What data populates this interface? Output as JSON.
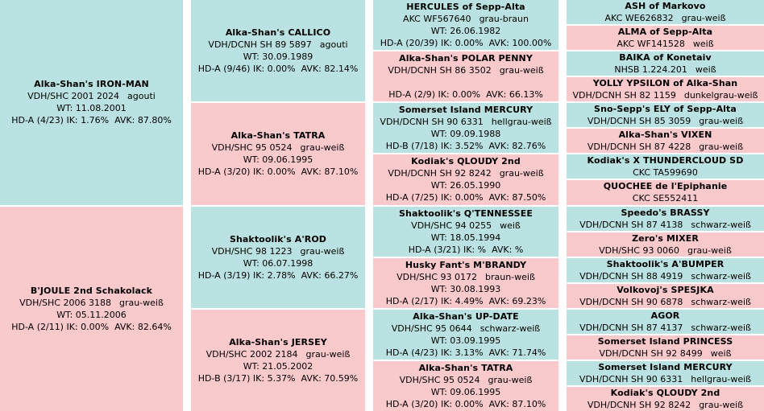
{
  "pedigree": {
    "colors": {
      "sire_bg": "#BAE2E2",
      "dam_bg": "#FAC9CC",
      "gap_bg": "#FFFFFF",
      "text": "#000000"
    },
    "columns": [
      {
        "generation": 1,
        "cells": [
          {
            "role": "sire",
            "name": "Alka-Shan's IRON-MAN",
            "reg": "VDH/SHC 2001 2024",
            "coat": "agouti",
            "wt": "WT: 11.08.2001",
            "hd": "HD-A (4/23) IK: 1.76%  AVK: 87.80%"
          },
          {
            "role": "dam",
            "name": "B'JOULE 2nd Schakolack",
            "reg": "VDH/SHC 2006 3188",
            "coat": "grau-weiß",
            "wt": "WT: 05.11.2006",
            "hd": "HD-A (2/11) IK: 0.00%  AVK: 82.64%"
          }
        ]
      },
      {
        "generation": 2,
        "cells": [
          {
            "role": "sire",
            "name": "Alka-Shan's CALLICO",
            "reg": "VDH/DCNH SH 89 5897",
            "coat": "agouti",
            "wt": "WT: 30.09.1989",
            "hd": "HD-A (9/46) IK: 0.00%  AVK: 82.14%"
          },
          {
            "role": "dam",
            "name": "Alka-Shan's TATRA",
            "reg": "VDH/SHC 95 0524",
            "coat": "grau-weiß",
            "wt": "WT: 09.06.1995",
            "hd": "HD-A (3/20) IK: 0.00%  AVK: 87.10%"
          },
          {
            "role": "sire",
            "name": "Shaktoolik's A'ROD",
            "reg": "VDH/SHC 98 1223",
            "coat": "grau-weiß",
            "wt": "WT: 06.07.1998",
            "hd": "HD-A (3/19) IK: 2.78%  AVK: 66.27%"
          },
          {
            "role": "dam",
            "name": "Alka-Shan's JERSEY",
            "reg": "VDH/SHC 2002 2184",
            "coat": "grau-weiß",
            "wt": "WT: 21.05.2002",
            "hd": "HD-B (3/17) IK: 5.37%  AVK: 70.59%"
          }
        ]
      },
      {
        "generation": 3,
        "cells": [
          {
            "role": "sire",
            "name": "HERCULES of Sepp-Alta",
            "reg": "AKC WF567640",
            "coat": "grau-braun",
            "wt": "WT: 26.06.1982",
            "hd": "HD-A (20/39) IK: 0.00%  AVK: 100.00%"
          },
          {
            "role": "dam",
            "name": "Alka-Shan's POLAR PENNY",
            "reg": "VDH/DCNH SH 86 3502",
            "coat": "grau-weiß",
            "wt": "",
            "hd": "HD-A (2/9) IK: 0.00%  AVK: 66.13%"
          },
          {
            "role": "sire",
            "name": "Somerset Island MERCURY",
            "reg": "VDH/DCNH SH 90 6331",
            "coat": "hellgrau-weiß",
            "wt": "WT: 09.09.1988",
            "hd": "HD-B (7/18) IK: 3.52%  AVK: 82.76%"
          },
          {
            "role": "dam",
            "name": "Kodiak's QLOUDY 2nd",
            "reg": "VDH/DCNH SH 92 8242",
            "coat": "grau-weiß",
            "wt": "WT: 26.05.1990",
            "hd": "HD-A (7/25) IK: 0.00%  AVK: 87.50%"
          },
          {
            "role": "sire",
            "name": "Shaktoolik's Q'TENNESSEE",
            "reg": "VDH/SHC 94 0255",
            "coat": "weiß",
            "wt": "WT: 18.05.1994",
            "hd": "HD-A (3/21) IK: %  AVK: %"
          },
          {
            "role": "dam",
            "name": "Husky Fant's M'BRANDY",
            "reg": "VDH/SHC 93 0172",
            "coat": "braun-weiß",
            "wt": "WT: 30.08.1993",
            "hd": "HD-A (2/17) IK: 4.49%  AVK: 69.23%"
          },
          {
            "role": "sire",
            "name": "Alka-Shan's UP-DATE",
            "reg": "VDH/SHC 95 0644",
            "coat": "schwarz-weiß",
            "wt": "WT: 03.09.1995",
            "hd": "HD-A (4/23) IK: 3.13%  AVK: 71.74%"
          },
          {
            "role": "dam",
            "name": "Alka-Shan's TATRA",
            "reg": "VDH/SHC 95 0524",
            "coat": "grau-weiß",
            "wt": "WT: 09.06.1995",
            "hd": "HD-A (3/20) IK: 0.00%  AVK: 87.10%"
          }
        ]
      },
      {
        "generation": 4,
        "cells": [
          {
            "role": "sire",
            "name": "ASH of Markovo",
            "reg": "AKC WE626832",
            "coat": "grau-weiß"
          },
          {
            "role": "dam",
            "name": "ALMA of Sepp-Alta",
            "reg": "AKC WF141528",
            "coat": "weiß"
          },
          {
            "role": "sire",
            "name": "BAIKA of Konetaiv",
            "reg": "NHSB 1.224.201",
            "coat": "weiß"
          },
          {
            "role": "dam",
            "name": "YOLLY YPSILON of Alka-Shan",
            "reg": "VDH/DCNH SH 82 1159",
            "coat": "dunkelgrau-weiß"
          },
          {
            "role": "sire",
            "name": "Sno-Sepp's ELY of Sepp-Alta",
            "reg": "VDH/DCNH SH 85 3059",
            "coat": "grau-weiß"
          },
          {
            "role": "dam",
            "name": "Alka-Shan's VIXEN",
            "reg": "VDH/DCNH SH 87 4228",
            "coat": "grau-weiß"
          },
          {
            "role": "sire",
            "name": "Kodiak's X THUNDERCLOUD SD",
            "reg": "CKC TA599690",
            "coat": ""
          },
          {
            "role": "dam",
            "name": "QUOCHEE de l'Epiphanie",
            "reg": "CKC SE552411",
            "coat": ""
          },
          {
            "role": "sire",
            "name": "Speedo's BRASSY",
            "reg": "VDH/DCNH SH 87 4138",
            "coat": "schwarz-weiß"
          },
          {
            "role": "dam",
            "name": "Zero's MIXER",
            "reg": "VDH/SHC 93 0060",
            "coat": "grau-weiß"
          },
          {
            "role": "sire",
            "name": "Shaktoolik's A'BUMPER",
            "reg": "VDH/DCNH SH 88 4919",
            "coat": "schwarz-weiß"
          },
          {
            "role": "dam",
            "name": "Volkovoj's SPESJKA",
            "reg": "VDH/DCNH SH 90 6878",
            "coat": "schwarz-weiß"
          },
          {
            "role": "sire",
            "name": "AGOR",
            "reg": "VDH/DCNH SH 87 4137",
            "coat": "schwarz-weiß"
          },
          {
            "role": "dam",
            "name": "Somerset Island PRINCESS",
            "reg": "VDH/DCNH SH 92 8499",
            "coat": "weiß"
          },
          {
            "role": "sire",
            "name": "Somerset Island MERCURY",
            "reg": "VDH/DCNH SH 90 6331",
            "coat": "hellgrau-weiß"
          },
          {
            "role": "dam",
            "name": "Kodiak's QLOUDY 2nd",
            "reg": "VDH/DCNH SH 92 8242",
            "coat": "grau-weiß"
          }
        ]
      }
    ]
  }
}
